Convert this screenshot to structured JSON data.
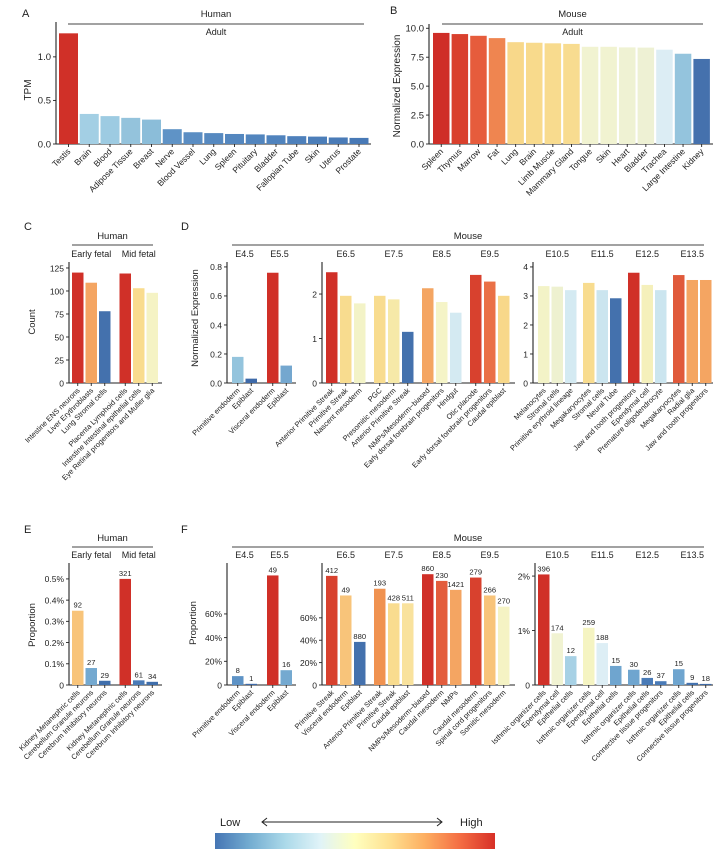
{
  "chart_data": [
    {
      "panel": "A",
      "type": "bar",
      "species": "Human",
      "ylabel": "TPM",
      "facets": [
        {
          "ylim": [
            0,
            1.4
          ],
          "yticks": [
            0,
            0.5,
            1.0
          ],
          "ytick_labels": [
            "0.0",
            "0.5",
            "1.0"
          ],
          "groups": [
            {
              "label": "Adult",
              "categories": [
                "Testis",
                "Brain",
                "Blood",
                "Adipose Tissue",
                "Breast",
                "Nerve",
                "Blood Vessel",
                "Lung",
                "Spleen",
                "Pituitary",
                "Bladder",
                "Fallopian Tube",
                "Skin",
                "Uterus",
                "Prostate"
              ],
              "values": [
                1.27,
                0.345,
                0.32,
                0.3,
                0.28,
                0.17,
                0.135,
                0.125,
                0.115,
                0.11,
                0.1,
                0.09,
                0.085,
                0.075,
                0.07
              ],
              "colors": [
                "#d03028",
                "#a3cfe4",
                "#9dcbe2",
                "#94c3dc",
                "#8bbdd9",
                "#5f93c6",
                "#5a8dc3",
                "#5689c0",
                "#5487bf",
                "#5285be",
                "#5083bd",
                "#4e80bb",
                "#4c7eb9",
                "#4a7bb7",
                "#4879b6"
              ]
            }
          ]
        }
      ]
    },
    {
      "panel": "B",
      "type": "bar",
      "species": "Mouse",
      "ylabel": "Normalized Expression",
      "facets": [
        {
          "ylim": [
            0,
            10.37
          ],
          "yticks": [
            0,
            2.5,
            5.0,
            7.5,
            10.0
          ],
          "ytick_labels": [
            "0.0",
            "2.5",
            "5.0",
            "7.5",
            "10.0"
          ],
          "groups": [
            {
              "label": "Adult",
              "categories": [
                "Spleen",
                "Thymus",
                "Marrow",
                "Fat",
                "Lung",
                "Brain",
                "Limb Muscle",
                "Mammary Gland",
                "Tongue",
                "Skin",
                "Heart",
                "Bladder",
                "Trachea",
                "Large Intestine",
                "Kidney"
              ],
              "values": [
                9.6,
                9.5,
                9.35,
                9.15,
                8.8,
                8.75,
                8.7,
                8.65,
                8.4,
                8.4,
                8.35,
                8.33,
                8.15,
                7.8,
                7.35
              ],
              "colors": [
                "#cf2e28",
                "#d9402d",
                "#e65c3c",
                "#ef8550",
                "#f8d88a",
                "#f8da8c",
                "#f8db8e",
                "#f8dc90",
                "#f1f3d1",
                "#f1f3d1",
                "#eff2d3",
                "#eef1d4",
                "#dcedf4",
                "#94c4dd",
                "#4571ad"
              ]
            }
          ]
        }
      ]
    },
    {
      "panel": "C",
      "type": "bar",
      "species": "Human",
      "ylabel": "Count",
      "facets": [
        {
          "ylim": [
            0,
            131.5
          ],
          "yticks": [
            0,
            25,
            50,
            75,
            100,
            125
          ],
          "ytick_labels": [
            "0",
            "25",
            "50",
            "75",
            "100",
            "125"
          ],
          "groups": [
            {
              "label": "Early fetal",
              "categories": [
                "Intestine ENS neurons",
                "Liver Erythroblasts",
                "Lung Stromal cells"
              ],
              "values": [
                120,
                109,
                78
              ],
              "colors": [
                "#d03028",
                "#f4a562",
                "#4471ad"
              ]
            },
            {
              "label": "Mid fetal",
              "categories": [
                "Placenta Lymphoid cells",
                "Intestine Intestinal epithelial cells",
                "Eye Retinal progenitors and Muller glia"
              ],
              "values": [
                119,
                103,
                98
              ],
              "colors": [
                "#d03028",
                "#f9dc8e",
                "#f5f3c4"
              ]
            }
          ]
        }
      ]
    },
    {
      "panel": "D",
      "type": "bar",
      "species": "Mouse",
      "ylabel": "Normalized Expression",
      "facets": [
        {
          "ylim": [
            0,
            0.834
          ],
          "yticks": [
            0,
            0.2,
            0.4,
            0.6,
            0.8
          ],
          "ytick_labels": [
            "0.0",
            "0.2",
            "0.4",
            "0.6",
            "0.8"
          ],
          "groups": [
            {
              "label": "E4.5",
              "categories": [
                "Primitive endoderm",
                "Epiblast"
              ],
              "values": [
                0.18,
                0.03
              ],
              "colors": [
                "#94c4dd",
                "#3e6aa9"
              ]
            },
            {
              "label": "E5.5",
              "categories": [
                "Visceral endoderm",
                "Epiblast"
              ],
              "values": [
                0.76,
                0.12
              ],
              "colors": [
                "#d03028",
                "#74a7cf"
              ]
            }
          ]
        },
        {
          "ylim": [
            0,
            2.72
          ],
          "yticks": [
            0,
            1,
            2
          ],
          "ytick_labels": [
            "0",
            "1",
            "2"
          ],
          "groups": [
            {
              "label": "E6.5",
              "categories": [
                "Anterior Primitive Streak",
                "Primitive Streak",
                "Nascent mesoderm"
              ],
              "values": [
                2.49,
                1.96,
                1.79
              ],
              "colors": [
                "#d03028",
                "#f8dc8f",
                "#f3f3c7"
              ]
            },
            {
              "label": "E7.5",
              "categories": [
                "PGC",
                "Presomitic mesoderm",
                "Anterior Primitive Streak"
              ],
              "values": [
                1.96,
                1.88,
                1.15
              ],
              "colors": [
                "#f8dc8f",
                "#f6e9a8",
                "#4471ad"
              ]
            },
            {
              "label": "E8.5",
              "categories": [
                "NMPs/Mesoderm−biased",
                "Early dorsal forebrain progenitors",
                "Hindgut"
              ],
              "values": [
                2.13,
                1.82,
                1.58
              ],
              "colors": [
                "#f4a562",
                "#f5f4c7",
                "#d4eaf2"
              ]
            },
            {
              "label": "E9.5",
              "categories": [
                "Otic placode",
                "Early dorsal forebrain progenitors",
                "Caudal epiblast"
              ],
              "values": [
                2.43,
                2.28,
                1.96
              ],
              "colors": [
                "#d8412e",
                "#ea7046",
                "#f8d88a"
              ]
            }
          ]
        },
        {
          "ylim": [
            0,
            4.17
          ],
          "yticks": [
            0,
            1,
            2,
            3,
            4
          ],
          "ytick_labels": [
            "0",
            "1",
            "2",
            "3",
            "4"
          ],
          "groups": [
            {
              "label": "E10.5",
              "categories": [
                "Melanocytes",
                "Stromal cells",
                "Primitive erythroid lineage"
              ],
              "values": [
                3.34,
                3.32,
                3.2
              ],
              "colors": [
                "#f3f3c7",
                "#eef1d0",
                "#d4eaf2"
              ]
            },
            {
              "label": "E11.5",
              "categories": [
                "Megakaryocytes",
                "Stromal cells",
                "Neural Tube"
              ],
              "values": [
                3.45,
                3.2,
                2.92
              ],
              "colors": [
                "#f8dc8f",
                "#cbe5ef",
                "#4471ad"
              ]
            },
            {
              "label": "E12.5",
              "categories": [
                "Jaw and tooth progenitors",
                "Ependymal cell",
                "Premature oligodendrocyte"
              ],
              "values": [
                3.8,
                3.38,
                3.2
              ],
              "colors": [
                "#d03028",
                "#f5f0bb",
                "#cbe5ef"
              ]
            },
            {
              "label": "E13.5",
              "categories": [
                "Megakaryocytes",
                "Radial glia",
                "Jaw and tooth progenitors"
              ],
              "values": [
                3.72,
                3.55,
                3.55
              ],
              "colors": [
                "#e05a3b",
                "#f4a562",
                "#f4a562"
              ]
            }
          ]
        }
      ]
    },
    {
      "panel": "E",
      "type": "bar",
      "species": "Human",
      "ylabel": "Proportion",
      "value_unit": "%",
      "facets": [
        {
          "ylim": [
            0,
            0.575
          ],
          "yticks": [
            0,
            0.1,
            0.2,
            0.3,
            0.4,
            0.5
          ],
          "ytick_labels": [
            "0",
            "0.1%",
            "0.2%",
            "0.3%",
            "0.4%",
            "0.5%"
          ],
          "groups": [
            {
              "label": "Early fetal",
              "categories": [
                "Kidney Metanephric cells",
                "Cerebellum Granule neurons",
                "Cerebrum Inhibitory neurons"
              ],
              "values": [
                0.35,
                0.08,
                0.02
              ],
              "value_labels": [
                "92",
                "27",
                "29"
              ],
              "colors": [
                "#f8c47a",
                "#74a9d0",
                "#3f6eab"
              ]
            },
            {
              "label": "Mid fetal",
              "categories": [
                "Kidney Metanephric cells",
                "Cerebellum Granule neurons",
                "Cerebrum Inhibitory neurons"
              ],
              "values": [
                0.5,
                0.022,
                0.015
              ],
              "value_labels": [
                "321",
                "61",
                "34"
              ],
              "colors": [
                "#d03028",
                "#4a7bb7",
                "#3f6eab"
              ]
            }
          ]
        }
      ]
    },
    {
      "panel": "F",
      "type": "bar",
      "species": "Mouse",
      "ylabel": "Proportion",
      "value_unit": "%",
      "facets": [
        {
          "ylim": [
            0,
            103
          ],
          "yticks": [
            0,
            20,
            40,
            60
          ],
          "ytick_labels": [
            "0",
            "20%",
            "40%",
            "60%"
          ],
          "groups": [
            {
              "label": "E4.5",
              "categories": [
                "Primitive endoderm",
                "Epiblast"
              ],
              "values": [
                7.5,
                1
              ],
              "value_labels": [
                "8",
                "1"
              ],
              "colors": [
                "#5e93c6",
                "#3e6aa9"
              ]
            },
            {
              "label": "E5.5",
              "categories": [
                "Visceral endoderm",
                "Epiblast"
              ],
              "values": [
                92.5,
                12.5
              ],
              "value_labels": [
                "49",
                "16"
              ],
              "colors": [
                "#d03028",
                "#74a9d0"
              ]
            }
          ]
        },
        {
          "ylim": [
            0,
            109
          ],
          "yticks": [
            0,
            20,
            40,
            60
          ],
          "ytick_labels": [
            "0",
            "20%",
            "40%",
            "60%"
          ],
          "groups": [
            {
              "label": "E6.5",
              "categories": [
                "Primitive Streak",
                "Visceral endoderm",
                "Epiblast"
              ],
              "values": [
                97.5,
                80,
                38.5
              ],
              "value_labels": [
                "412",
                "49",
                "880"
              ],
              "colors": [
                "#d8412e",
                "#f8c47a",
                "#4471ad"
              ]
            },
            {
              "label": "E7.5",
              "categories": [
                "Anterior Primitive Streak",
                "Primitive Streak",
                "Caudal epiblast"
              ],
              "values": [
                86,
                73,
                73
              ],
              "value_labels": [
                "193",
                "428",
                "511"
              ],
              "colors": [
                "#f09250",
                "#f9dc8f",
                "#f9e29d"
              ]
            },
            {
              "label": "E8.5",
              "categories": [
                "NMPs/Mesoderm−biased",
                "Caudal mesoderm",
                "NMPs"
              ],
              "values": [
                99,
                93,
                85
              ],
              "value_labels": [
                "860",
                "230",
                "1421"
              ],
              "colors": [
                "#d03028",
                "#e35d3d",
                "#f4a562"
              ]
            },
            {
              "label": "E9.5",
              "categories": [
                "Caudal mesoderm",
                "Spinal cord progenitors",
                "Somitic mesoderm"
              ],
              "values": [
                96,
                80,
                70
              ],
              "value_labels": [
                "279",
                "266",
                "270"
              ],
              "colors": [
                "#d8412e",
                "#f8c47a",
                "#f5f3c4"
              ]
            }
          ]
        },
        {
          "ylim": [
            0,
            2.24
          ],
          "yticks": [
            0,
            1,
            2
          ],
          "ytick_labels": [
            "0",
            "1%",
            "2%"
          ],
          "groups": [
            {
              "label": "E10.5",
              "categories": [
                "Isthmic organizer cells",
                "Ependymal cell",
                "Epithelial cells"
              ],
              "values": [
                2.03,
                0.95,
                0.53
              ],
              "value_labels": [
                "396",
                "174",
                "12"
              ],
              "colors": [
                "#d03028",
                "#f1f3d2",
                "#a7d1e5"
              ]
            },
            {
              "label": "E11.5",
              "categories": [
                "Isthmic organizer cells",
                "Ependymal cell",
                "Epithelial cells"
              ],
              "values": [
                1.05,
                0.77,
                0.35
              ],
              "value_labels": [
                "259",
                "188",
                "15"
              ],
              "colors": [
                "#f5f4c2",
                "#ddeef5",
                "#6fa5cf"
              ]
            },
            {
              "label": "E12.5",
              "categories": [
                "Isthmic organizer cells",
                "Epithelial cells",
                "Connective tissue progenitors"
              ],
              "values": [
                0.28,
                0.13,
                0.07
              ],
              "value_labels": [
                "30",
                "26",
                "37"
              ],
              "colors": [
                "#6fa5cf",
                "#4a7bb7",
                "#4a7bb7"
              ]
            },
            {
              "label": "E13.5",
              "categories": [
                "Isthmic organizer cells",
                "Epithelial cells",
                "Connective tissue progenitors"
              ],
              "values": [
                0.29,
                0.04,
                0.02
              ],
              "value_labels": [
                "15",
                "9",
                "18"
              ],
              "colors": [
                "#6fa5cf",
                "#4472ae",
                "#3f6aa5"
              ]
            }
          ]
        }
      ]
    }
  ],
  "legend": {
    "low_label": "Low",
    "high_label": "High",
    "gradient_colors": [
      "#4575b4",
      "#74add1",
      "#abd9e9",
      "#e0f3f8",
      "#ffffbf",
      "#fee090",
      "#fdae61",
      "#f46d43",
      "#d73027"
    ]
  }
}
